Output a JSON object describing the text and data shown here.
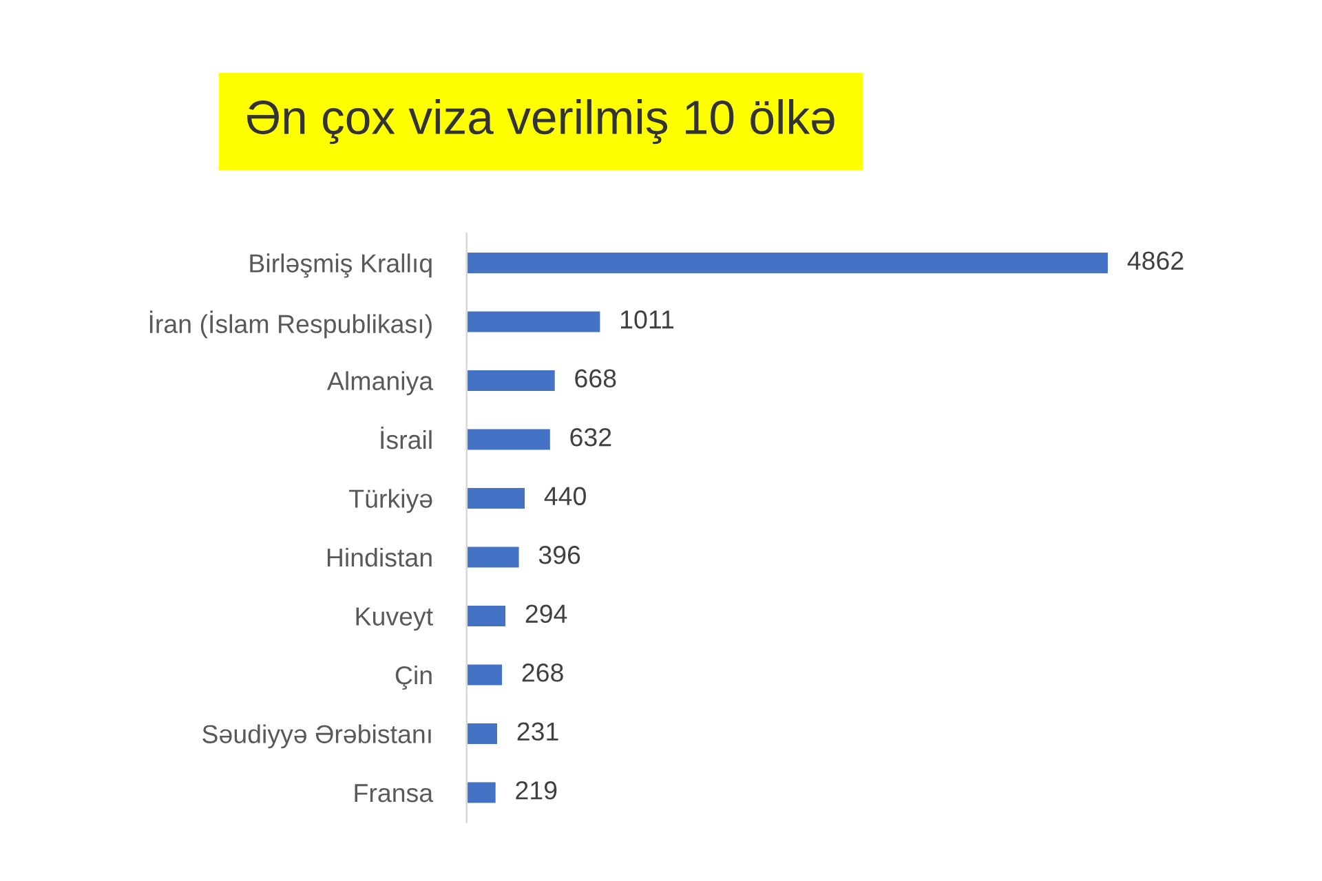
{
  "chart_data": {
    "type": "bar",
    "orientation": "horizontal",
    "title": "Ən çox viza verilmiş 10 ölkə",
    "categories": [
      "Birləşmiş Krallıq",
      "İran (İslam Respublikası)",
      "Almaniya",
      "İsrail",
      "Türkiyə",
      "Hindistan",
      "Kuveyt",
      "Çin",
      "Səudiyyə Ərəbistanı",
      "Fransa"
    ],
    "values": [
      4862,
      1011,
      668,
      632,
      440,
      396,
      294,
      268,
      231,
      219
    ],
    "color": "#4472c4",
    "data_labels": true,
    "grid": false,
    "legend": false,
    "tick_labels": "y"
  }
}
